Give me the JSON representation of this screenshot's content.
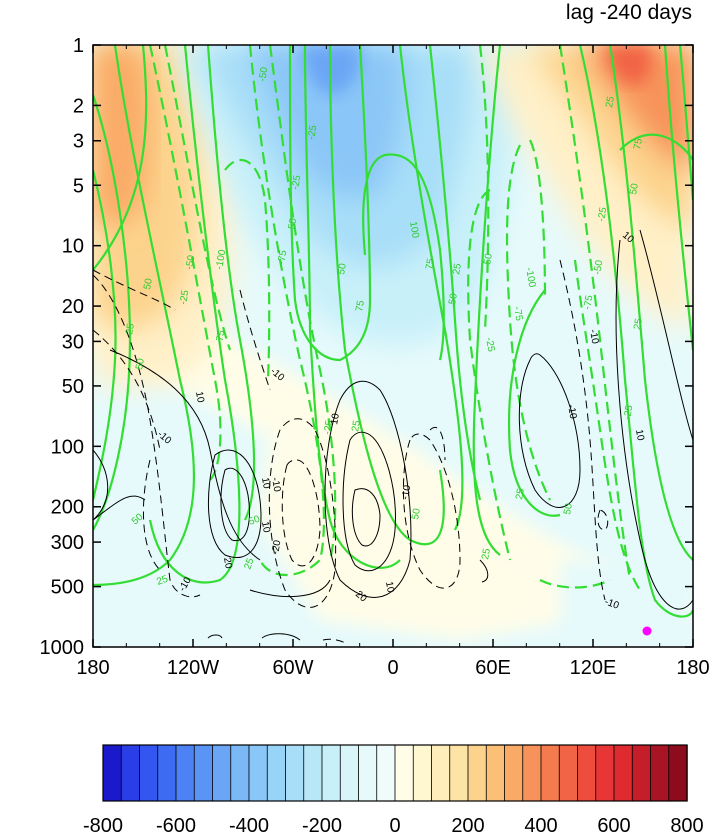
{
  "chart_data": {
    "type": "heatmap",
    "title": "lag -240 days",
    "x_axis": {
      "ticks": [
        -180,
        -120,
        -60,
        0,
        60,
        120,
        180
      ],
      "tick_labels": [
        "180",
        "120W",
        "60W",
        "0",
        "60E",
        "120E",
        "180"
      ],
      "range": [
        -180,
        180
      ]
    },
    "y_axis": {
      "scale": "log",
      "reversed": true,
      "ticks": [
        1,
        2,
        3,
        5,
        10,
        20,
        30,
        50,
        100,
        200,
        300,
        500,
        1000
      ],
      "tick_labels": [
        "1",
        "2",
        "3",
        "5",
        "10",
        "20",
        "30",
        "50",
        "100",
        "200",
        "300",
        "500",
        "1000"
      ],
      "range": [
        1,
        1000
      ]
    },
    "colorbar": {
      "levels": [
        -800,
        -750,
        -700,
        -650,
        -600,
        -550,
        -500,
        -450,
        -400,
        -350,
        -300,
        -250,
        -200,
        -150,
        -100,
        -50,
        0,
        50,
        100,
        150,
        200,
        250,
        300,
        350,
        400,
        450,
        500,
        550,
        600,
        650,
        700,
        750,
        800
      ],
      "tick_labels": [
        "-800",
        "-600",
        "-400",
        "-200",
        "0",
        "200",
        "400",
        "600",
        "800"
      ],
      "colors": [
        "#1a1acc",
        "#2a3ee8",
        "#3355f0",
        "#3d6cf3",
        "#4c82f4",
        "#5a95f5",
        "#6aa6f5",
        "#7ab8f6",
        "#8ac6f7",
        "#98d3f8",
        "#a8def8",
        "#b8e8f8",
        "#c8f0f9",
        "#d8f6fa",
        "#e6fafb",
        "#f0fcfb",
        "#fffde8",
        "#fff7d0",
        "#ffeebb",
        "#fde3a4",
        "#fcd38c",
        "#fbc076",
        "#f9aa66",
        "#f7935a",
        "#f47b4e",
        "#f16445",
        "#ee4c3d",
        "#e83636",
        "#df2a30",
        "#c41e2a",
        "#a81424",
        "#8c0c1e"
      ]
    },
    "shading_series": [
      {
        "region": "upper-left",
        "lon": [
          -180,
          -130
        ],
        "p": [
          1,
          60
        ],
        "value": 300
      },
      {
        "region": "upper-center",
        "lon": [
          -60,
          30
        ],
        "p": [
          1,
          30
        ],
        "value": -300
      },
      {
        "region": "upper-right",
        "lon": [
          90,
          180
        ],
        "p": [
          1,
          10
        ],
        "value": 300
      },
      {
        "region": "lower",
        "lon": [
          -180,
          180
        ],
        "p": [
          100,
          1000
        ],
        "value": 50
      }
    ],
    "green_contours": {
      "levels": [
        -100,
        -75,
        -50,
        -25,
        25,
        50,
        75,
        100
      ]
    },
    "black_contours": {
      "levels": [
        -20,
        -10,
        10,
        20
      ]
    },
    "marker": {
      "lon": 150,
      "p": 900,
      "color": "#ff00ff"
    }
  }
}
